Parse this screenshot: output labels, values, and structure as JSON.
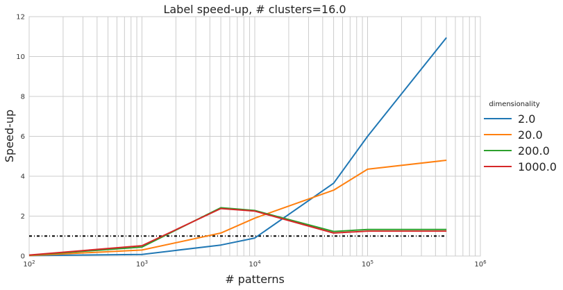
{
  "chart_data": {
    "type": "line",
    "title": "Label speed-up, # clusters=16.0",
    "xlabel": "# patterns",
    "ylabel": "Speed-up",
    "xscale": "log",
    "xlim": [
      100,
      1000000
    ],
    "ylim": [
      0,
      12
    ],
    "x_ticks": [
      {
        "base": "10",
        "exp": "2"
      },
      {
        "base": "10",
        "exp": "3"
      },
      {
        "base": "10",
        "exp": "4"
      },
      {
        "base": "10",
        "exp": "5"
      },
      {
        "base": "10",
        "exp": "6"
      }
    ],
    "y_ticks": [
      "0",
      "2",
      "4",
      "6",
      "8",
      "10",
      "12"
    ],
    "grid": true,
    "legend": {
      "title": "dimensionality",
      "placement": "right"
    },
    "x": [
      100,
      1000,
      5000,
      10000,
      50000,
      100000,
      500000
    ],
    "series": [
      {
        "name": "2.0",
        "color": "#1f77b4",
        "values": [
          0.02,
          0.08,
          0.55,
          0.9,
          3.65,
          6.0,
          10.95
        ]
      },
      {
        "name": "20.0",
        "color": "#ff7f0e",
        "values": [
          0.02,
          0.3,
          1.15,
          1.9,
          3.3,
          4.35,
          4.8
        ]
      },
      {
        "name": "200.0",
        "color": "#2ca02c",
        "values": [
          0.04,
          0.45,
          2.42,
          2.28,
          1.23,
          1.33,
          1.33
        ]
      },
      {
        "name": "1000.0",
        "color": "#d62728",
        "values": [
          0.05,
          0.52,
          2.38,
          2.25,
          1.15,
          1.25,
          1.25
        ]
      }
    ],
    "reference_line": {
      "y": 1.0,
      "style": "dash-dot",
      "color": "#000000",
      "x_range": [
        100,
        500000
      ]
    }
  }
}
